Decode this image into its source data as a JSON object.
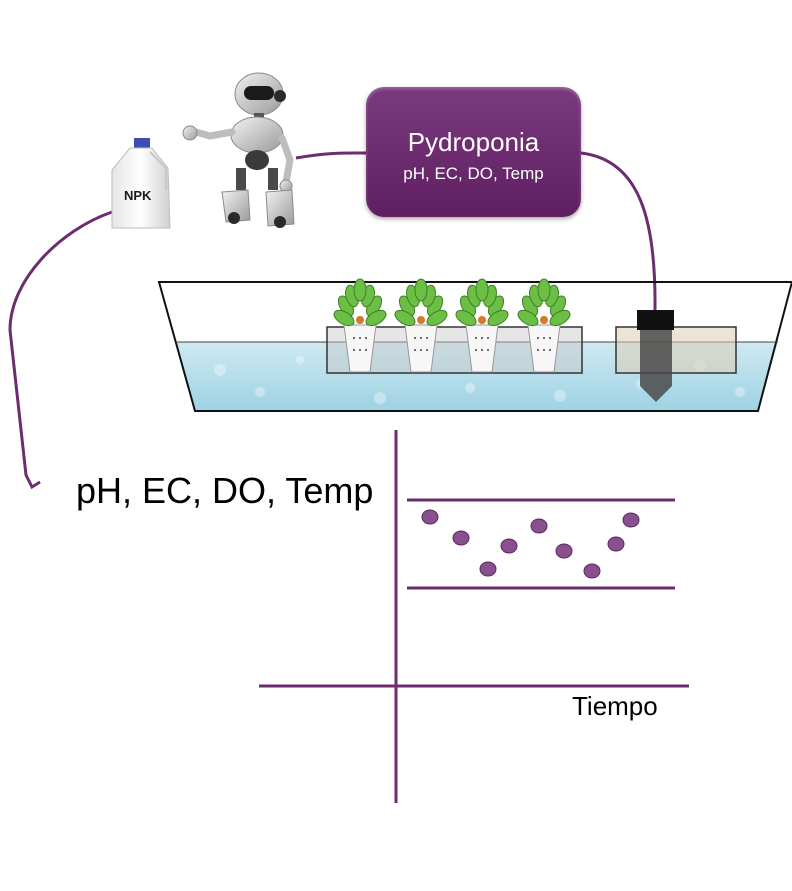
{
  "diagram": {
    "system_box": {
      "title": "Pydroponia",
      "subtitle": "pH, EC, DO, Temp"
    },
    "fertilizer_jug": {
      "label": "NPK"
    },
    "robot": {
      "icon": "robot-icon"
    },
    "tank": {
      "plant_count": 4,
      "icon": "plant-icon",
      "sensor_icon": "sensor-probe-icon"
    },
    "chart": {
      "ylabel": "pH, EC, DO, Temp",
      "xlabel": "Tiempo",
      "marker_color": "#8a4f8e",
      "line_color": "#6b2d6e"
    }
  }
}
